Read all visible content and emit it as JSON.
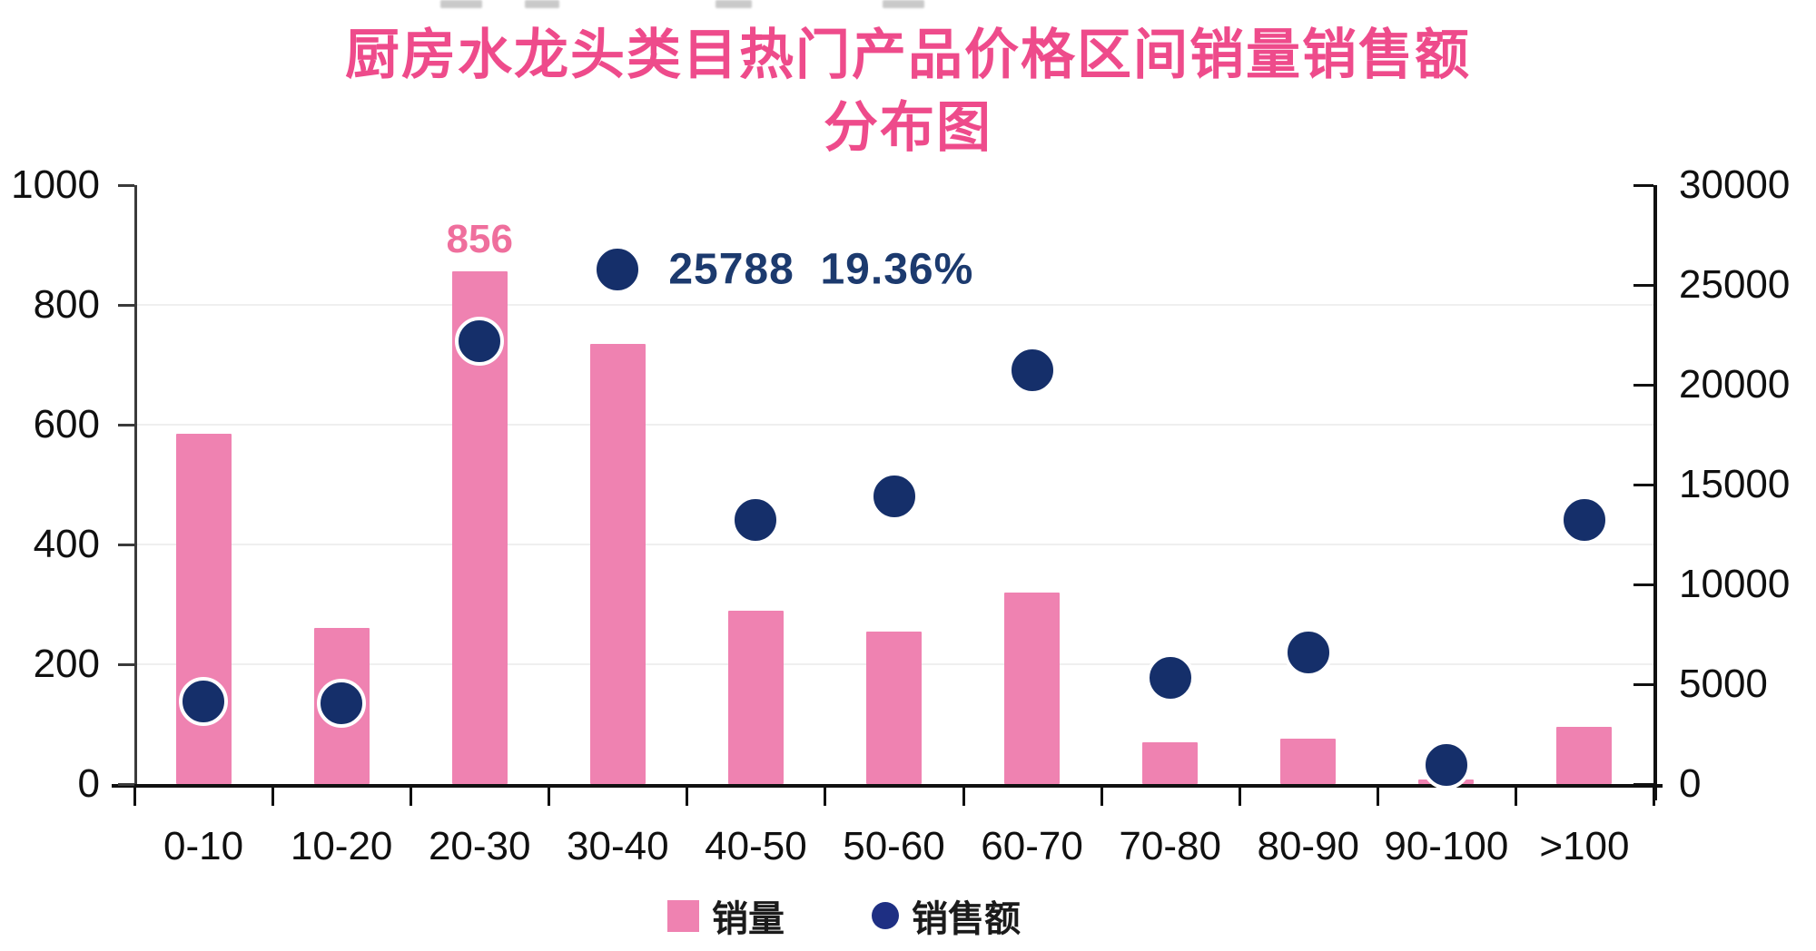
{
  "title": {
    "line1": "厨房水龙头类目热门产品价格区间销量销售额",
    "line2": "分布图",
    "color": "#ee4b8b"
  },
  "colors": {
    "bar_pink": "#ef82b1",
    "dot_navy": "#152f6a",
    "dot_halo": "#ffffff",
    "legend_dot_blue": "#1e2f83",
    "annotation_pink": "#ef6f9d",
    "annotation_navy": "#1c3a6e",
    "axis_text": "#101010",
    "gridline": "#efefef"
  },
  "legend": [
    {
      "label": "销量",
      "marker": "square",
      "color": "#ef82b1"
    },
    {
      "label": "销售额",
      "marker": "circle",
      "color": "#1e2f83"
    }
  ],
  "chart_data": {
    "type": "bar",
    "subtype": "bar+scatter dual-axis",
    "title": "厨房水龙头类目热门产品价格区间销量销售额分布图",
    "categories": [
      "0-10",
      "10-20",
      "20-30",
      "30-40",
      "40-50",
      "50-60",
      "60-70",
      "70-80",
      "80-90",
      "90-100",
      ">100"
    ],
    "series": [
      {
        "name": "销量",
        "type": "bar",
        "axis": "left",
        "color": "#ef82b1",
        "values": [
          585,
          260,
          856,
          735,
          290,
          255,
          320,
          70,
          76,
          8,
          95
        ]
      },
      {
        "name": "销售额",
        "type": "scatter",
        "axis": "right",
        "color": "#152f6a",
        "values": [
          4150,
          4050,
          22200,
          25788,
          13250,
          14400,
          20750,
          5300,
          6600,
          950,
          13250
        ]
      }
    ],
    "left_axis": {
      "min": 0,
      "max": 1000,
      "tick_labels": [
        "0",
        "200",
        "400",
        "600",
        "800",
        "1000"
      ],
      "tick_values": [
        0,
        200,
        400,
        600,
        800,
        1000
      ]
    },
    "right_axis": {
      "min": 0,
      "max": 30000,
      "tick_labels": [
        "0",
        "5000",
        "10000",
        "15000",
        "20000",
        "25000",
        "30000"
      ],
      "tick_values": [
        0,
        5000,
        10000,
        15000,
        20000,
        25000,
        30000
      ]
    },
    "grid": "faint horizontal lines at left-axis ticks 200/400/600/800",
    "legend_position": "bottom-center",
    "annotations": [
      {
        "text": "856",
        "series": "销量",
        "category": "20-30",
        "style": "pink-above-bar"
      },
      {
        "text": "25788  19.36%",
        "series": "销售额",
        "category": "30-40",
        "style": "navy-right-of-dot"
      }
    ]
  }
}
